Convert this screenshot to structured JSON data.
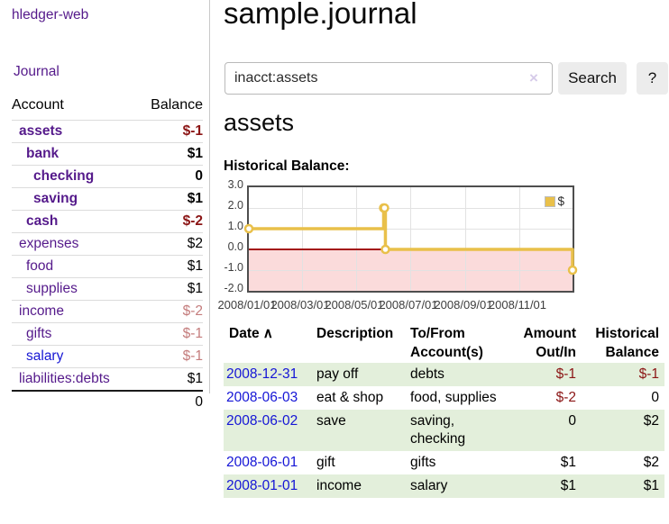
{
  "app": {
    "brand": "hledger-web",
    "nav": {
      "journal": "Journal"
    }
  },
  "colors": {
    "link_purple": "#551a8b",
    "link_blue": "#1717d4",
    "negative_strong": "#8b1515",
    "negative_dim": "#c47c7c",
    "row_green": "#e3efdb",
    "chart_line": "#e9c04a",
    "chart_negative_region": "#fbdbdb",
    "chart_zero_line": "#a41616",
    "button_gray": "#ececec"
  },
  "sidebar": {
    "header": {
      "account": "Account",
      "balance": "Balance"
    },
    "accounts": [
      {
        "label": "assets",
        "depth": 1,
        "bold": true,
        "balance": "$-1",
        "amount_style": "neg",
        "link_style": "purple"
      },
      {
        "label": "bank",
        "depth": 2,
        "bold": true,
        "balance": "$1",
        "amount_style": "plain",
        "link_style": "purple"
      },
      {
        "label": "checking",
        "depth": 3,
        "bold": true,
        "balance": "0",
        "amount_style": "plain",
        "link_style": "purple"
      },
      {
        "label": "saving",
        "depth": 3,
        "bold": true,
        "balance": "$1",
        "amount_style": "plain",
        "link_style": "purple"
      },
      {
        "label": "cash",
        "depth": 2,
        "bold": true,
        "balance": "$-2",
        "amount_style": "neg",
        "link_style": "purple"
      },
      {
        "label": "expenses",
        "depth": 1,
        "bold": false,
        "balance": "$2",
        "amount_style": "plain",
        "link_style": "purple"
      },
      {
        "label": "food",
        "depth": 2,
        "bold": false,
        "balance": "$1",
        "amount_style": "plain",
        "link_style": "purple"
      },
      {
        "label": "supplies",
        "depth": 2,
        "bold": false,
        "balance": "$1",
        "amount_style": "plain",
        "link_style": "purple"
      },
      {
        "label": "income",
        "depth": 1,
        "bold": false,
        "balance": "$-2",
        "amount_style": "neg-dim",
        "link_style": "purple"
      },
      {
        "label": "gifts",
        "depth": 2,
        "bold": false,
        "balance": "$-1",
        "amount_style": "neg-dim",
        "link_style": "purple"
      },
      {
        "label": "salary",
        "depth": 2,
        "bold": false,
        "balance": "$-1",
        "amount_style": "neg-dim",
        "link_style": "blue"
      },
      {
        "label": "liabilities:debts",
        "depth": 1,
        "bold": false,
        "balance": "$1",
        "amount_style": "plain",
        "link_style": "purple"
      }
    ],
    "total": "0"
  },
  "main": {
    "title": "sample.journal",
    "search": {
      "value": "inacct:assets",
      "clear_icon": "×",
      "search_button": "Search",
      "help_button": "?"
    },
    "account_heading": "assets",
    "chart_label": "Historical Balance:"
  },
  "chart_data": {
    "type": "line",
    "step": true,
    "title": "Historical Balance",
    "series": [
      {
        "name": "$",
        "points": [
          [
            "2008-01-01",
            1.0
          ],
          [
            "2008-06-01",
            2.0
          ],
          [
            "2008-06-02",
            2.0
          ],
          [
            "2008-06-03",
            0.0
          ],
          [
            "2008-12-31",
            -1.0
          ]
        ]
      }
    ],
    "ylim": [
      -2.0,
      3.0
    ],
    "yticks": [
      "3.0",
      "2.0",
      "1.0",
      "0.0",
      "-1.0",
      "-2.0"
    ],
    "xticks": [
      "2008/01/01",
      "2008/03/01",
      "2008/05/01",
      "2008/07/01",
      "2008/09/01",
      "2008/11/01"
    ],
    "legend": {
      "label": "$",
      "position": "top-right"
    },
    "grid": true,
    "negative_region_shaded": true
  },
  "transactions": {
    "headers": {
      "date": "Date",
      "sort_icon": "∧",
      "description": "Description",
      "accounts": "To/From Account(s)",
      "amount": "Amount Out/In",
      "balance": "Historical Balance"
    },
    "rows": [
      {
        "date": "2008-12-31",
        "description": "pay off",
        "accounts": "debts",
        "amount": "$-1",
        "amount_neg": true,
        "balance": "$-1",
        "balance_neg": true
      },
      {
        "date": "2008-06-03",
        "description": "eat & shop",
        "accounts": "food, supplies",
        "amount": "$-2",
        "amount_neg": true,
        "balance": "0",
        "balance_neg": false
      },
      {
        "date": "2008-06-02",
        "description": "save",
        "accounts": "saving, checking",
        "amount": "0",
        "amount_neg": false,
        "balance": "$2",
        "balance_neg": false
      },
      {
        "date": "2008-06-01",
        "description": "gift",
        "accounts": "gifts",
        "amount": "$1",
        "amount_neg": false,
        "balance": "$2",
        "balance_neg": false
      },
      {
        "date": "2008-01-01",
        "description": "income",
        "accounts": "salary",
        "amount": "$1",
        "amount_neg": false,
        "balance": "$1",
        "balance_neg": false
      }
    ]
  }
}
